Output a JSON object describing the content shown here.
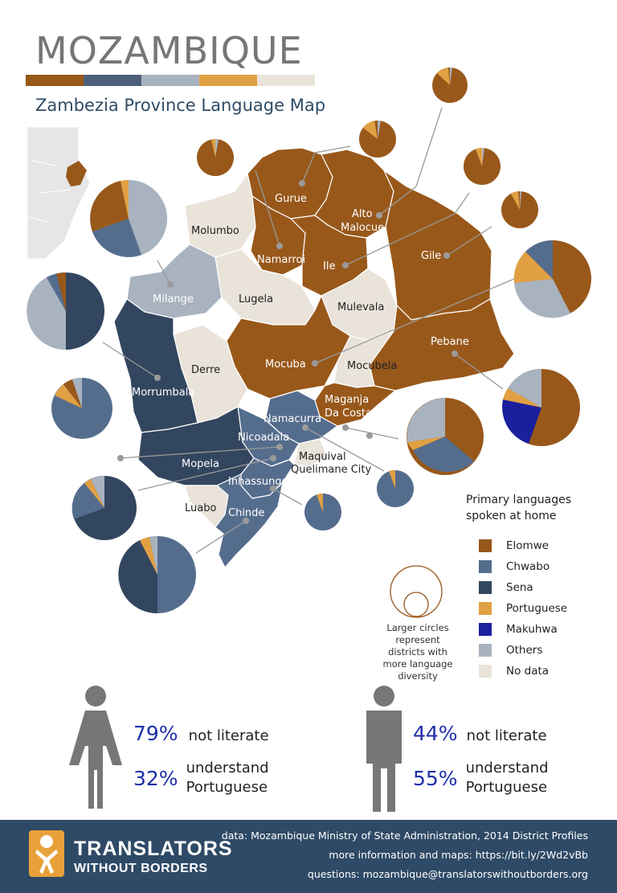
{
  "title": "MOZAMBIQUE",
  "subtitle": "Zambezia Province Language Map",
  "palette": [
    "#98581a",
    "#4e6079",
    "#a9b3c0",
    "#e1a043",
    "#e9e3da"
  ],
  "colors": {
    "elomwe": "#98581a",
    "chwabo": "#556d8d",
    "sena": "#33465f",
    "portuguese": "#e1a043",
    "makuhwa": "#1a1f9e",
    "others": "#a9b3c0",
    "nodata": "#e9e3da"
  },
  "districts": {
    "gurue": "Gurue",
    "alto_malocue_1": "Alto",
    "alto_malocue_2": "Malocue",
    "molumbo": "Molumbo",
    "namarroi": "Namarroi",
    "ile": "Ile",
    "gile": "Gile",
    "milange": "Milange",
    "lugela": "Lugela",
    "mulevala": "Mulevala",
    "pebane": "Pebane",
    "mocuba": "Mocuba",
    "mocubela": "Mocubela",
    "derre": "Derre",
    "morrumbala": "Morrumbala",
    "maganja_1": "Maganja",
    "maganja_2": "Da Costa",
    "namacurra": "Namacurra",
    "nicoadala": "Nicoadala",
    "maquival": "Maquival",
    "quelimane": "Quelimane City",
    "mopela": "Mopela",
    "inhassunge": "Inhassunge",
    "luabo": "Luabo",
    "chinde": "Chinde"
  },
  "legend": {
    "title_line1": "Primary languages",
    "title_line2": "spoken at home",
    "items": [
      {
        "label": "Elomwe",
        "color": "#98581a"
      },
      {
        "label": "Chwabo",
        "color": "#556d8d"
      },
      {
        "label": "Sena",
        "color": "#33465f"
      },
      {
        "label": "Portuguese",
        "color": "#e1a043"
      },
      {
        "label": "Makuhwa",
        "color": "#1a1f9e"
      },
      {
        "label": "Others",
        "color": "#a9b3c0"
      },
      {
        "label": "No data",
        "color": "#e9e3da"
      }
    ],
    "circle_note": "Larger circles represent districts with more language diversity"
  },
  "stats": {
    "female": {
      "illiterate_pct": "79%",
      "illiterate_txt": "not literate",
      "portuguese_pct": "32%",
      "portuguese_txt1": "understand",
      "portuguese_txt2": "Portuguese"
    },
    "male": {
      "illiterate_pct": "44%",
      "illiterate_txt": "not literate",
      "portuguese_pct": "55%",
      "portuguese_txt1": "understand",
      "portuguese_txt2": "Portuguese"
    }
  },
  "footer": {
    "brand_line1": "TRANSLATORS",
    "brand_line2": "WITHOUT BORDERS",
    "source": "data: Mozambique Ministry of State Administration, 2014 District Profiles",
    "more_info": "more information and maps: https://bit.ly/2Wd2vBb",
    "questions": "questions: mozambique@translatorswithoutborders.org"
  }
}
